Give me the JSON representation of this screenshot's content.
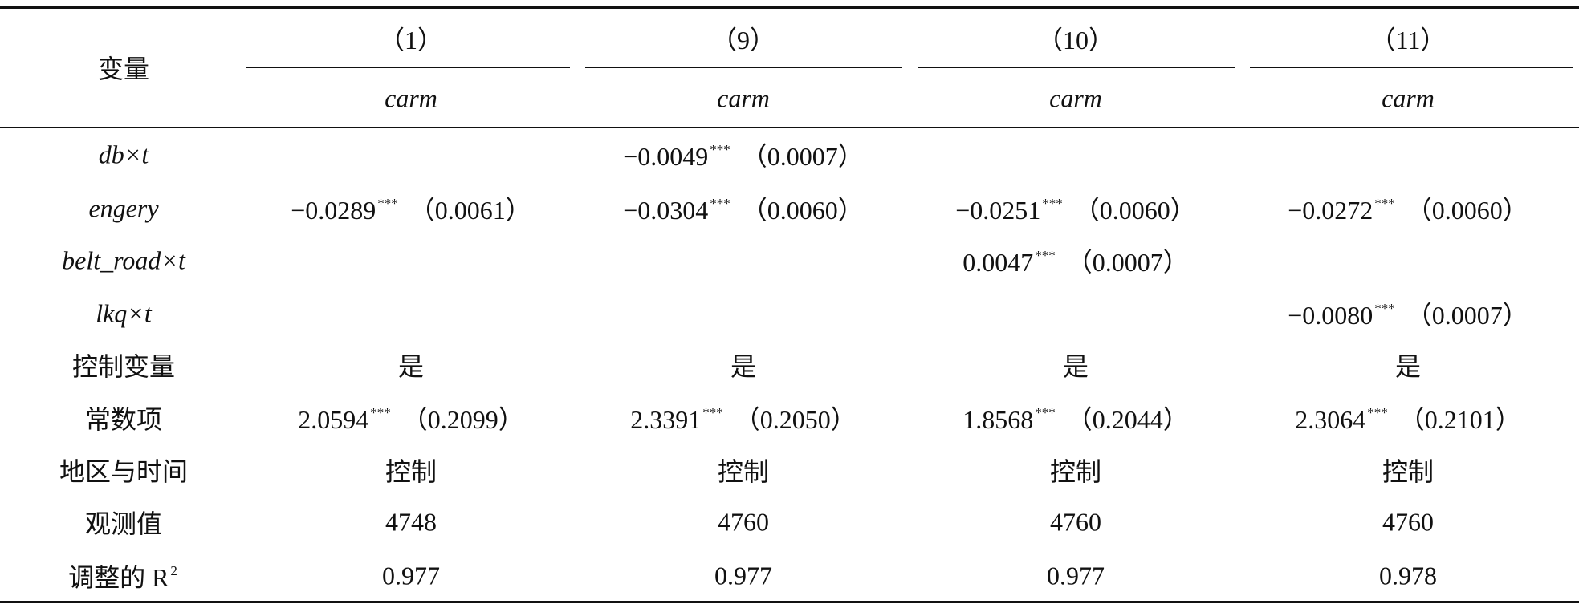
{
  "header": {
    "corner": "变量",
    "columns": [
      "（1）",
      "（9）",
      "（10）",
      "（11）"
    ],
    "subheaders": [
      "carm",
      "carm",
      "carm",
      "carm"
    ]
  },
  "rows": [
    {
      "label": "db×t",
      "cells": [
        null,
        {
          "coef": "−0.0049",
          "stars": "***",
          "se": "（0.0007）"
        },
        null,
        null
      ]
    },
    {
      "label": "engery",
      "cells": [
        {
          "coef": "−0.0289",
          "stars": "***",
          "se": "（0.0061）"
        },
        {
          "coef": "−0.0304",
          "stars": "***",
          "se": "（0.0060）"
        },
        {
          "coef": "−0.0251",
          "stars": "***",
          "se": "（0.0060）"
        },
        {
          "coef": "−0.0272",
          "stars": "***",
          "se": "（0.0060）"
        }
      ]
    },
    {
      "label": "belt_road×t",
      "cells": [
        null,
        null,
        {
          "coef": "0.0047",
          "stars": "***",
          "se": "（0.0007）"
        },
        null
      ]
    },
    {
      "label": "lkq×t",
      "cells": [
        null,
        null,
        null,
        {
          "coef": "−0.0080",
          "stars": "***",
          "se": "（0.0007）"
        }
      ]
    },
    {
      "label": "控制变量",
      "cells": [
        "是",
        "是",
        "是",
        "是"
      ]
    },
    {
      "label": "常数项",
      "cells": [
        {
          "coef": "2.0594",
          "stars": "***",
          "se": "（0.2099）"
        },
        {
          "coef": "2.3391",
          "stars": "***",
          "se": "（0.2050）"
        },
        {
          "coef": "1.8568",
          "stars": "***",
          "se": "（0.2044）"
        },
        {
          "coef": "2.3064",
          "stars": "***",
          "se": "（0.2101）"
        }
      ]
    },
    {
      "label": "地区与时间",
      "cells": [
        "控制",
        "控制",
        "控制",
        "控制"
      ]
    },
    {
      "label": "观测值",
      "cells": [
        "4748",
        "4760",
        "4760",
        "4760"
      ]
    },
    {
      "label": "调整的 R",
      "label_sup": "2",
      "cells": [
        "0.977",
        "0.977",
        "0.977",
        "0.978"
      ]
    }
  ]
}
